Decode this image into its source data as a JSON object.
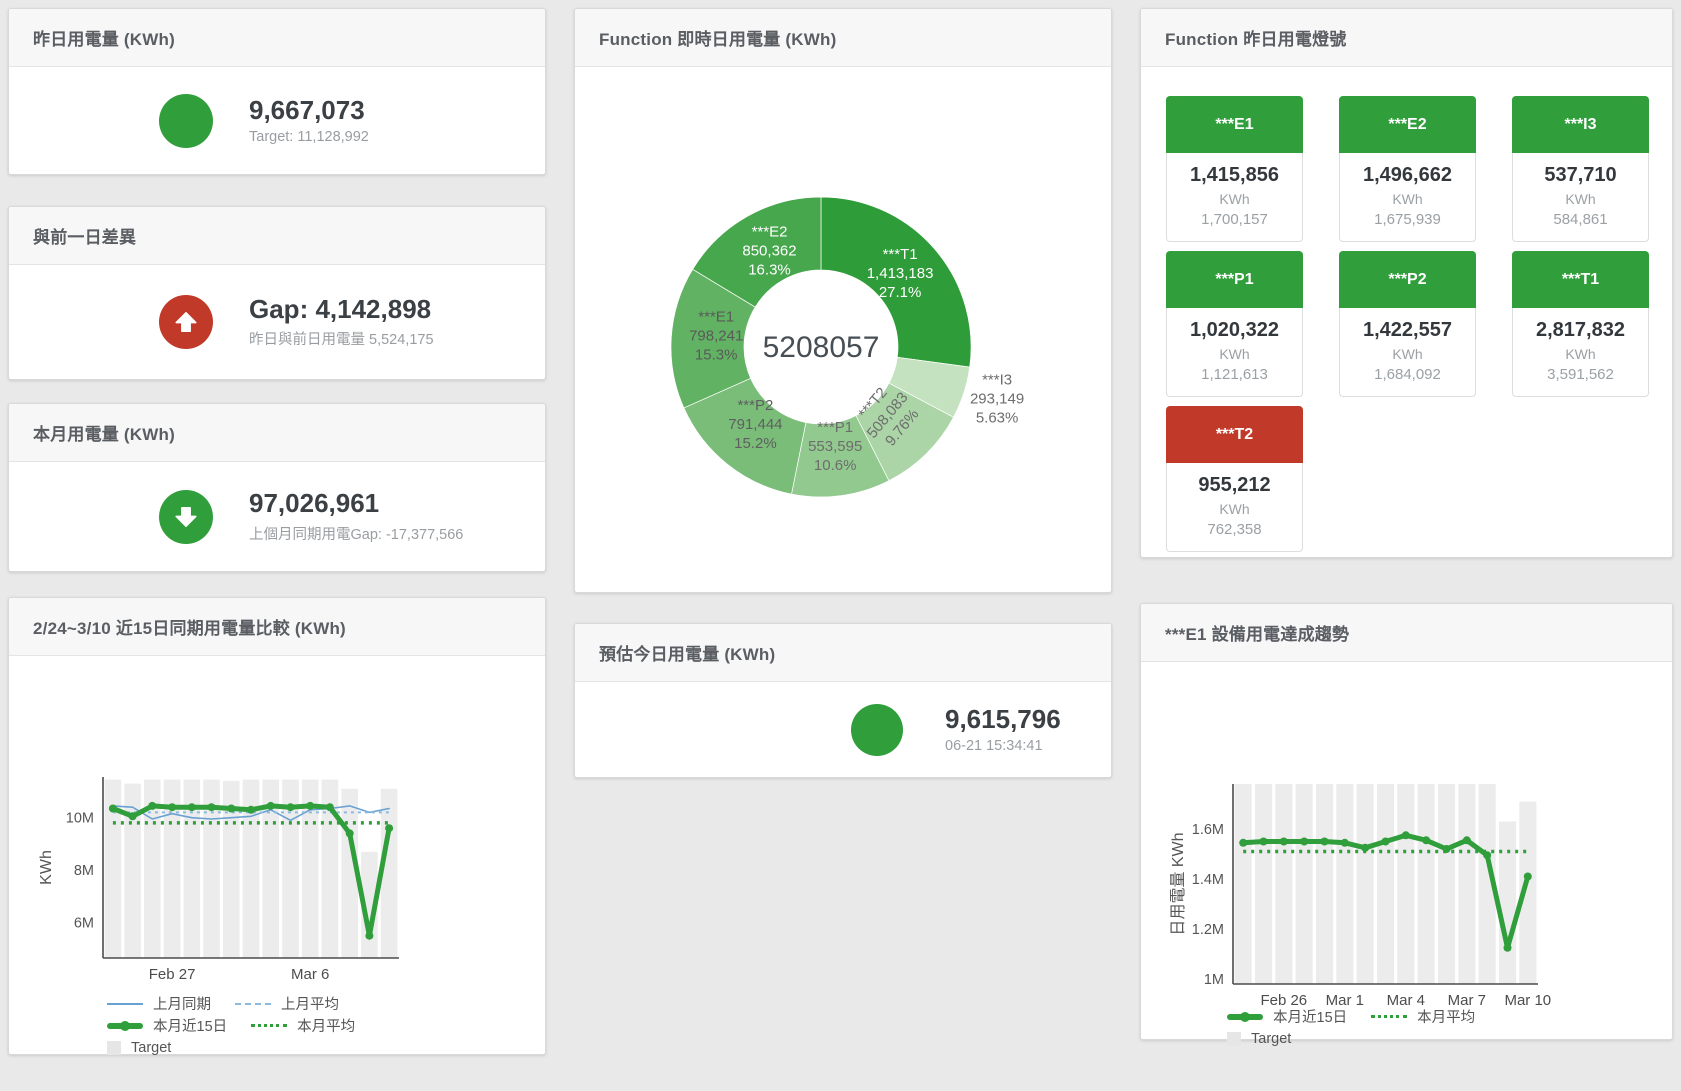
{
  "colors": {
    "green": "#2f9e3b",
    "red": "#c13a29",
    "bar_gray": "#ececec",
    "blue": "#69a2d2",
    "blue_light": "#8bb9e0",
    "page_bg": "#e9e9e9"
  },
  "stats": {
    "yesterday": {
      "title": "昨日用電量 (KWh)",
      "icon": "circle",
      "icon_color": "#2f9e3b",
      "value": "9,667,073",
      "subtitle": "Target: 11,128,992"
    },
    "diff_prev_day": {
      "title": "與前一日差異",
      "icon": "arrow-up",
      "icon_color": "#c13a29",
      "value": "Gap: 4,142,898",
      "subtitle": "昨日與前日用電量 5,524,175"
    },
    "month": {
      "title": "本月用電量 (KWh)",
      "icon": "arrow-down",
      "icon_color": "#2f9e3b",
      "value": "97,026,961",
      "subtitle": "上個月同期用電Gap: -17,377,566"
    },
    "today_estimate": {
      "title": "預估今日用電量 (KWh)",
      "icon": "circle",
      "icon_color": "#2f9e3b",
      "value": "9,615,796",
      "subtitle": "06-21 15:34:41"
    }
  },
  "lights": {
    "title": "Function 昨日用電燈號",
    "tiles": [
      {
        "name": "***E1",
        "value": "1,415,856",
        "unit": "KWh",
        "target": "1,700,157",
        "status": "green"
      },
      {
        "name": "***E2",
        "value": "1,496,662",
        "unit": "KWh",
        "target": "1,675,939",
        "status": "green"
      },
      {
        "name": "***I3",
        "value": "537,710",
        "unit": "KWh",
        "target": "584,861",
        "status": "green"
      },
      {
        "name": "***P1",
        "value": "1,020,322",
        "unit": "KWh",
        "target": "1,121,613",
        "status": "green"
      },
      {
        "name": "***P2",
        "value": "1,422,557",
        "unit": "KWh",
        "target": "1,684,092",
        "status": "green"
      },
      {
        "name": "***T1",
        "value": "2,817,832",
        "unit": "KWh",
        "target": "3,591,562",
        "status": "green"
      },
      {
        "name": "***T2",
        "value": "955,212",
        "unit": "KWh",
        "target": "762,358",
        "status": "red"
      }
    ]
  },
  "chart_data": [
    {
      "id": "donut",
      "type": "pie",
      "title": "Function 即時日用電量 (KWh)",
      "center_total": "5208057",
      "unit": "KWh",
      "slices": [
        {
          "label": "***T1",
          "value": 1413183,
          "display": "1,413,183",
          "pct": "27.1%",
          "color": "#2e9c38",
          "text_color": "#ffffff",
          "label_r": 105
        },
        {
          "label": "***I3",
          "value": 293149,
          "display": "293,149",
          "pct": "5.63%",
          "color": "#c5e2c0",
          "text_color": "#6d6d6d",
          "outside": true,
          "label_r": 185
        },
        {
          "label": "***T2",
          "value": 508083,
          "display": "508,083",
          "pct": "9.76%",
          "color": "#abd5a7",
          "text_color": "#6d6d6d",
          "rotate": -50,
          "label_r": 100
        },
        {
          "label": "***P1",
          "value": 553595,
          "display": "553,595",
          "pct": "10.6%",
          "color": "#92c98f",
          "text_color": "#6d6d6d"
        },
        {
          "label": "***P2",
          "value": 791444,
          "display": "791,444",
          "pct": "15.2%",
          "color": "#79bd78",
          "text_color": "#5f5f5f"
        },
        {
          "label": "***E1",
          "value": 798241,
          "display": "798,241",
          "pct": "15.3%",
          "color": "#61b262",
          "text_color": "#5a5a5a"
        },
        {
          "label": "***E2",
          "value": 850362,
          "display": "850,362",
          "pct": "16.3%",
          "color": "#47a74d",
          "text_color": "#ffffff"
        }
      ]
    },
    {
      "id": "compare",
      "type": "line",
      "title": "2/24~3/10 近15日同期用電量比較 (KWh)",
      "ylabel": "KWh",
      "unit": "M KWh",
      "ylim": [
        4.65,
        11.55
      ],
      "yticks": [
        {
          "v": 6,
          "label": "6M"
        },
        {
          "v": 8,
          "label": "8M"
        },
        {
          "v": 10,
          "label": "10M"
        }
      ],
      "xticks": [
        {
          "i": 3,
          "label": "Feb 27"
        },
        {
          "i": 10,
          "label": "Mar 6"
        }
      ],
      "bars": {
        "name": "Target",
        "color": "#ececec",
        "values": [
          11.45,
          11.3,
          11.45,
          11.45,
          11.45,
          11.45,
          11.4,
          11.45,
          11.45,
          11.45,
          11.45,
          11.45,
          11.1,
          8.7,
          11.1
        ]
      },
      "series": [
        {
          "name": "上月同期",
          "color": "#69a2d2",
          "width": 1.6,
          "values": [
            10.45,
            10.4,
            9.95,
            10.15,
            10.0,
            9.95,
            10.0,
            10.05,
            10.3,
            9.9,
            10.3,
            10.35,
            10.45,
            10.2,
            10.35
          ]
        },
        {
          "name": "上月平均",
          "color": "#8bb9e0",
          "width": 2,
          "dash": "3,4",
          "const": 10.2
        },
        {
          "name": "本月平均",
          "color": "#2f9e3b",
          "width": 3.5,
          "dash": "3,5",
          "const": 9.8
        },
        {
          "name": "本月近15日",
          "color": "#2f9e3b",
          "width": 5,
          "markers": true,
          "values": [
            10.35,
            10.05,
            10.45,
            10.4,
            10.4,
            10.4,
            10.35,
            10.3,
            10.45,
            10.4,
            10.45,
            10.4,
            9.4,
            5.5,
            9.6
          ]
        }
      ],
      "legend": [
        [
          {
            "type": "line",
            "color": "#69a2d2",
            "label": "上月同期"
          },
          {
            "type": "dash",
            "color": "#8bb9e0",
            "label": "上月平均"
          }
        ],
        [
          {
            "type": "thick",
            "color": "#2f9e3b",
            "label": "本月近15日"
          },
          {
            "type": "dots",
            "color": "#2f9e3b",
            "label": "本月平均"
          }
        ],
        [
          {
            "type": "box",
            "color": "#e6e6e6",
            "label": "Target"
          }
        ]
      ]
    },
    {
      "id": "e1trend",
      "type": "line",
      "title": "***E1 設備用電達成趨勢",
      "ylabel": "日用電量 KWh",
      "unit": "M KWh",
      "ylim": [
        0.98,
        1.78
      ],
      "yticks": [
        {
          "v": 1,
          "label": "1M"
        },
        {
          "v": 1.2,
          "label": "1.2M"
        },
        {
          "v": 1.4,
          "label": "1.4M"
        },
        {
          "v": 1.6,
          "label": "1.6M"
        }
      ],
      "xticks": [
        {
          "i": 2,
          "label": "Feb 26"
        },
        {
          "i": 5,
          "label": "Mar 1"
        },
        {
          "i": 8,
          "label": "Mar 4"
        },
        {
          "i": 11,
          "label": "Mar 7"
        },
        {
          "i": 14,
          "label": "Mar 10"
        }
      ],
      "bars": {
        "name": "Target",
        "color": "#ececec",
        "values": [
          1.78,
          1.78,
          1.78,
          1.78,
          1.78,
          1.78,
          1.78,
          1.78,
          1.78,
          1.78,
          1.78,
          1.78,
          1.78,
          1.63,
          1.71
        ]
      },
      "series": [
        {
          "name": "本月平均",
          "color": "#2f9e3b",
          "width": 3.5,
          "dash": "3,5",
          "const": 1.51
        },
        {
          "name": "本月近15日",
          "color": "#2f9e3b",
          "width": 5,
          "markers": true,
          "values": [
            1.545,
            1.55,
            1.55,
            1.55,
            1.55,
            1.545,
            1.525,
            1.55,
            1.575,
            1.555,
            1.52,
            1.555,
            1.495,
            1.125,
            1.41
          ]
        }
      ],
      "legend": [
        [
          {
            "type": "thick",
            "color": "#2f9e3b",
            "label": "本月近15日"
          },
          {
            "type": "dots",
            "color": "#2f9e3b",
            "label": "本月平均"
          }
        ],
        [
          {
            "type": "box",
            "color": "#e6e6e6",
            "label": "Target"
          }
        ]
      ]
    }
  ]
}
